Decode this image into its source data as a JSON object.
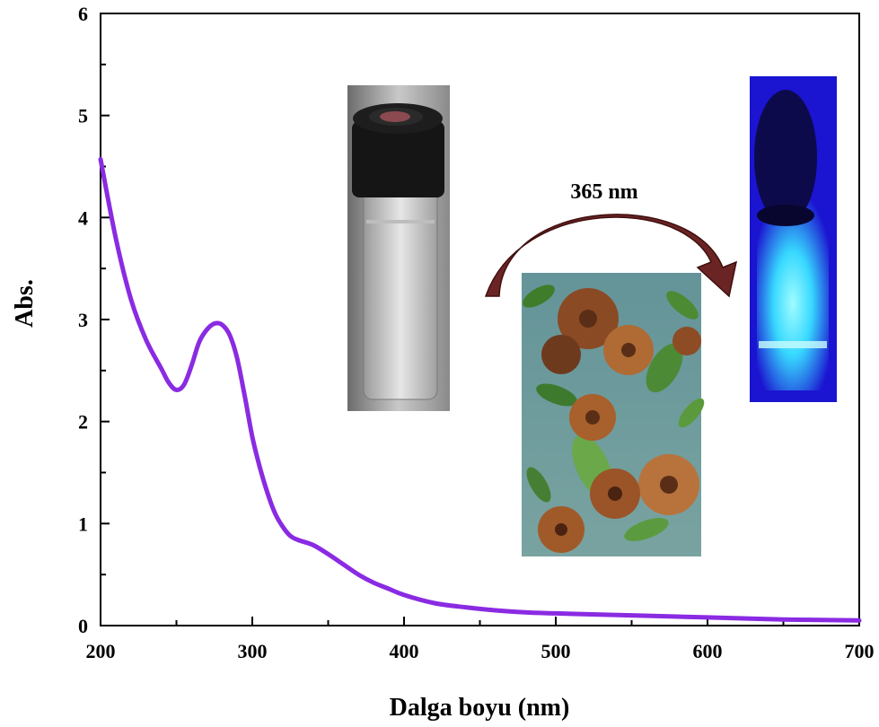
{
  "chart_data": {
    "type": "line",
    "title": "",
    "xlabel": "Dalga boyu (nm)",
    "ylabel": "Abs.",
    "xlim": [
      200,
      700
    ],
    "ylim": [
      0,
      6
    ],
    "xticks": [
      200,
      300,
      400,
      500,
      600,
      700
    ],
    "yticks": [
      0,
      1,
      2,
      3,
      4,
      5,
      6
    ],
    "grid": false,
    "legend": "none",
    "series": [
      {
        "color": "#8a2be2",
        "x": [
          200,
          210,
          220,
          230,
          240,
          245,
          250,
          255,
          260,
          265,
          270,
          275,
          280,
          285,
          290,
          295,
          300,
          305,
          310,
          315,
          320,
          325,
          330,
          340,
          350,
          360,
          370,
          380,
          390,
          400,
          420,
          440,
          460,
          480,
          500,
          550,
          600,
          650,
          700
        ],
        "y": [
          4.57,
          3.8,
          3.2,
          2.8,
          2.52,
          2.38,
          2.31,
          2.36,
          2.55,
          2.78,
          2.9,
          2.96,
          2.95,
          2.85,
          2.62,
          2.25,
          1.85,
          1.55,
          1.3,
          1.1,
          0.97,
          0.88,
          0.84,
          0.79,
          0.7,
          0.6,
          0.5,
          0.42,
          0.36,
          0.3,
          0.22,
          0.18,
          0.15,
          0.13,
          0.12,
          0.1,
          0.08,
          0.06,
          0.05
        ]
      }
    ],
    "annotations": [
      "365 nm"
    ]
  },
  "colors": {
    "curve": "#8a2be2",
    "arrow": "#6b2424",
    "arrow_edge": "#3f0f0f",
    "uv_glow": "#4ff5ff",
    "uv_bg": "#1a0ddb"
  },
  "icons": {
    "vial_photo": "glass-vial-photo",
    "flower_photo": "dried-flower-photo",
    "uv_vial_photo": "uv-glowing-vial-photo",
    "arrow": "curved-arrow-icon"
  }
}
